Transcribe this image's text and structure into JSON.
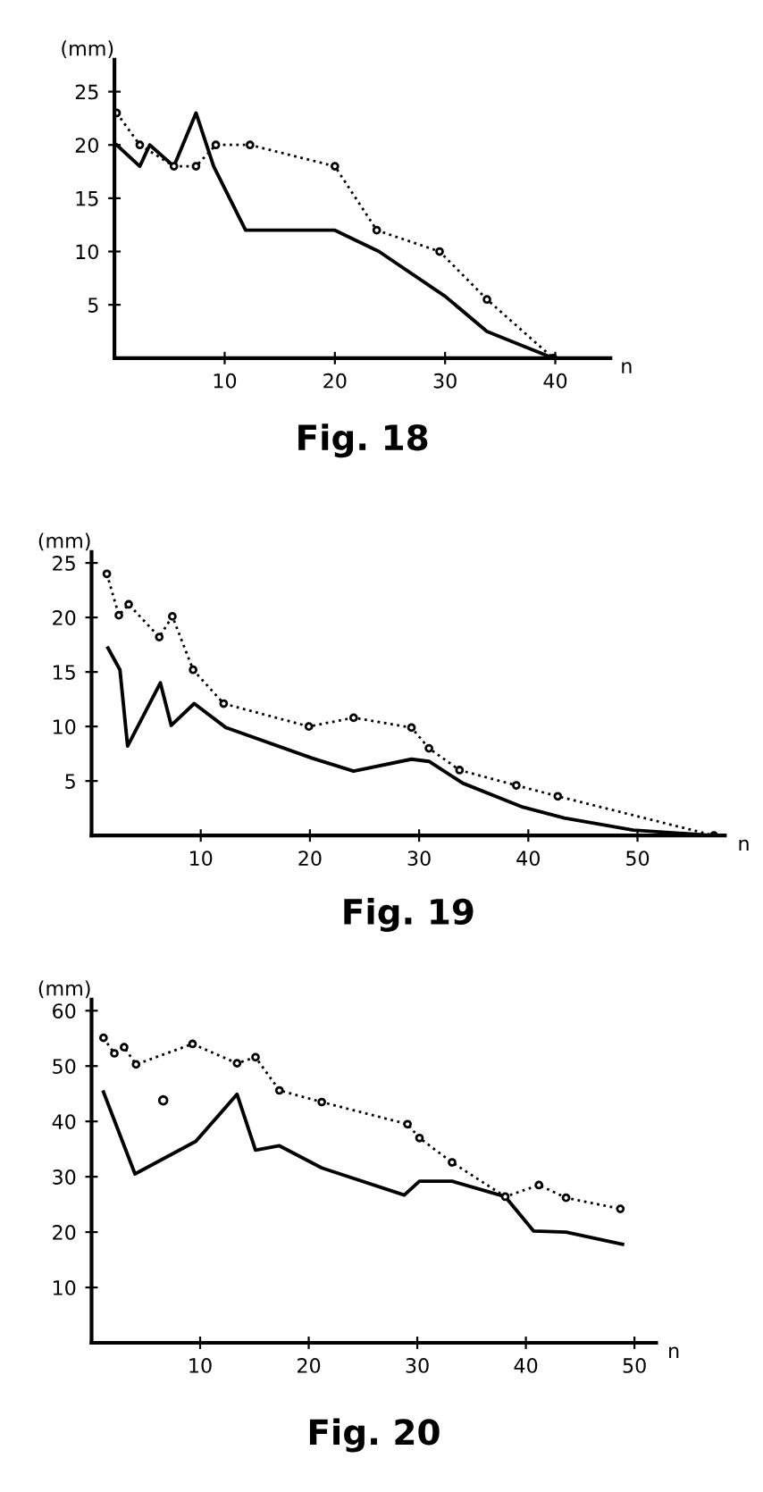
{
  "chart_data": [
    {
      "type": "line",
      "title": "Fig. 18",
      "xlabel": "n",
      "ylabel": "(mm)",
      "xlim": [
        0,
        45
      ],
      "ylim": [
        0,
        28
      ],
      "xticks": [
        10,
        20,
        30,
        40
      ],
      "yticks": [
        5,
        10,
        15,
        20,
        25
      ],
      "grid": false,
      "legend": false,
      "series": [
        {
          "color": "#000000",
          "line_style": "solid",
          "marker": "none",
          "x": [
            0.2,
            2.3,
            3.2,
            5.4,
            7.4,
            9.0,
            11.9,
            20,
            24,
            30,
            33.8,
            39.8
          ],
          "values": [
            20,
            18,
            20,
            18,
            23,
            18,
            12,
            12,
            10,
            5.8,
            2.5,
            0
          ]
        },
        {
          "color": "#000000",
          "line_style": "dotted",
          "marker": "circle",
          "x": [
            0.2,
            2.3,
            5.4,
            7.4,
            9.2,
            12.3,
            20,
            23.8,
            29.5,
            33.8,
            39.8
          ],
          "values": [
            23,
            20,
            18,
            18,
            20,
            20,
            18,
            12,
            10,
            5.5,
            0
          ]
        }
      ]
    },
    {
      "type": "line",
      "title": "Fig. 19",
      "xlabel": "n",
      "ylabel": "(mm)",
      "xlim": [
        0,
        58
      ],
      "ylim": [
        0,
        26
      ],
      "xticks": [
        10,
        20,
        30,
        40,
        50
      ],
      "yticks": [
        5,
        10,
        15,
        20,
        25
      ],
      "grid": false,
      "legend": false,
      "series": [
        {
          "color": "#000000",
          "line_style": "solid",
          "marker": "none",
          "x": [
            1.5,
            2.6,
            3.3,
            6.3,
            7.3,
            9.4,
            12.3,
            20.2,
            24,
            29.3,
            30.9,
            34,
            39.5,
            43.3,
            49.6,
            57
          ],
          "values": [
            17.2,
            15.2,
            8.2,
            14,
            10.1,
            12.1,
            9.9,
            7.1,
            5.9,
            7,
            6.8,
            4.8,
            2.6,
            1.6,
            0.5,
            0
          ]
        },
        {
          "color": "#000000",
          "line_style": "dotted",
          "marker": "circle",
          "x": [
            1.4,
            2.5,
            3.4,
            6.2,
            7.4,
            9.3,
            12.1,
            19.9,
            24,
            29.3,
            30.9,
            33.7,
            38.9,
            42.7,
            57
          ],
          "values": [
            24,
            20.2,
            21.2,
            18.2,
            20.1,
            15.2,
            12.1,
            10,
            10.8,
            9.9,
            8,
            6,
            4.6,
            3.6,
            0
          ]
        }
      ]
    },
    {
      "type": "line",
      "title": "Fig. 20",
      "xlabel": "n",
      "ylabel": "(mm)",
      "xlim": [
        0,
        52
      ],
      "ylim": [
        0,
        62
      ],
      "xticks": [
        10,
        20,
        30,
        40,
        50
      ],
      "yticks": [
        10,
        20,
        30,
        40,
        50,
        60
      ],
      "grid": false,
      "legend": false,
      "series": [
        {
          "color": "#000000",
          "line_style": "solid",
          "marker": "none",
          "x": [
            1.1,
            4.0,
            9.6,
            13.4,
            15.1,
            17.3,
            21.2,
            28.8,
            30.2,
            33.2,
            38.1,
            40.7,
            43.7,
            48.9
          ],
          "values": [
            45.3,
            30.5,
            36.4,
            44.9,
            34.8,
            35.6,
            31.6,
            26.7,
            29.2,
            29.2,
            26.4,
            20.2,
            20,
            17.8
          ]
        },
        {
          "color": "#000000",
          "line_style": "dotted",
          "marker": "circle",
          "x": [
            1.1,
            2.1,
            3.0,
            4.1,
            9.3,
            13.4,
            15.1,
            17.3,
            21.2,
            29.1,
            30.2,
            33.2,
            38.1,
            41.2,
            43.7,
            48.7
          ],
          "values": [
            55.1,
            52.3,
            53.4,
            50.3,
            54,
            50.5,
            51.6,
            45.6,
            43.5,
            39.5,
            37,
            32.6,
            26.4,
            28.5,
            26.2,
            24.2
          ]
        },
        {
          "type": "scatter",
          "color": "#000000",
          "marker": "circle",
          "x": [
            6.6
          ],
          "values": [
            43.8
          ]
        }
      ]
    }
  ]
}
